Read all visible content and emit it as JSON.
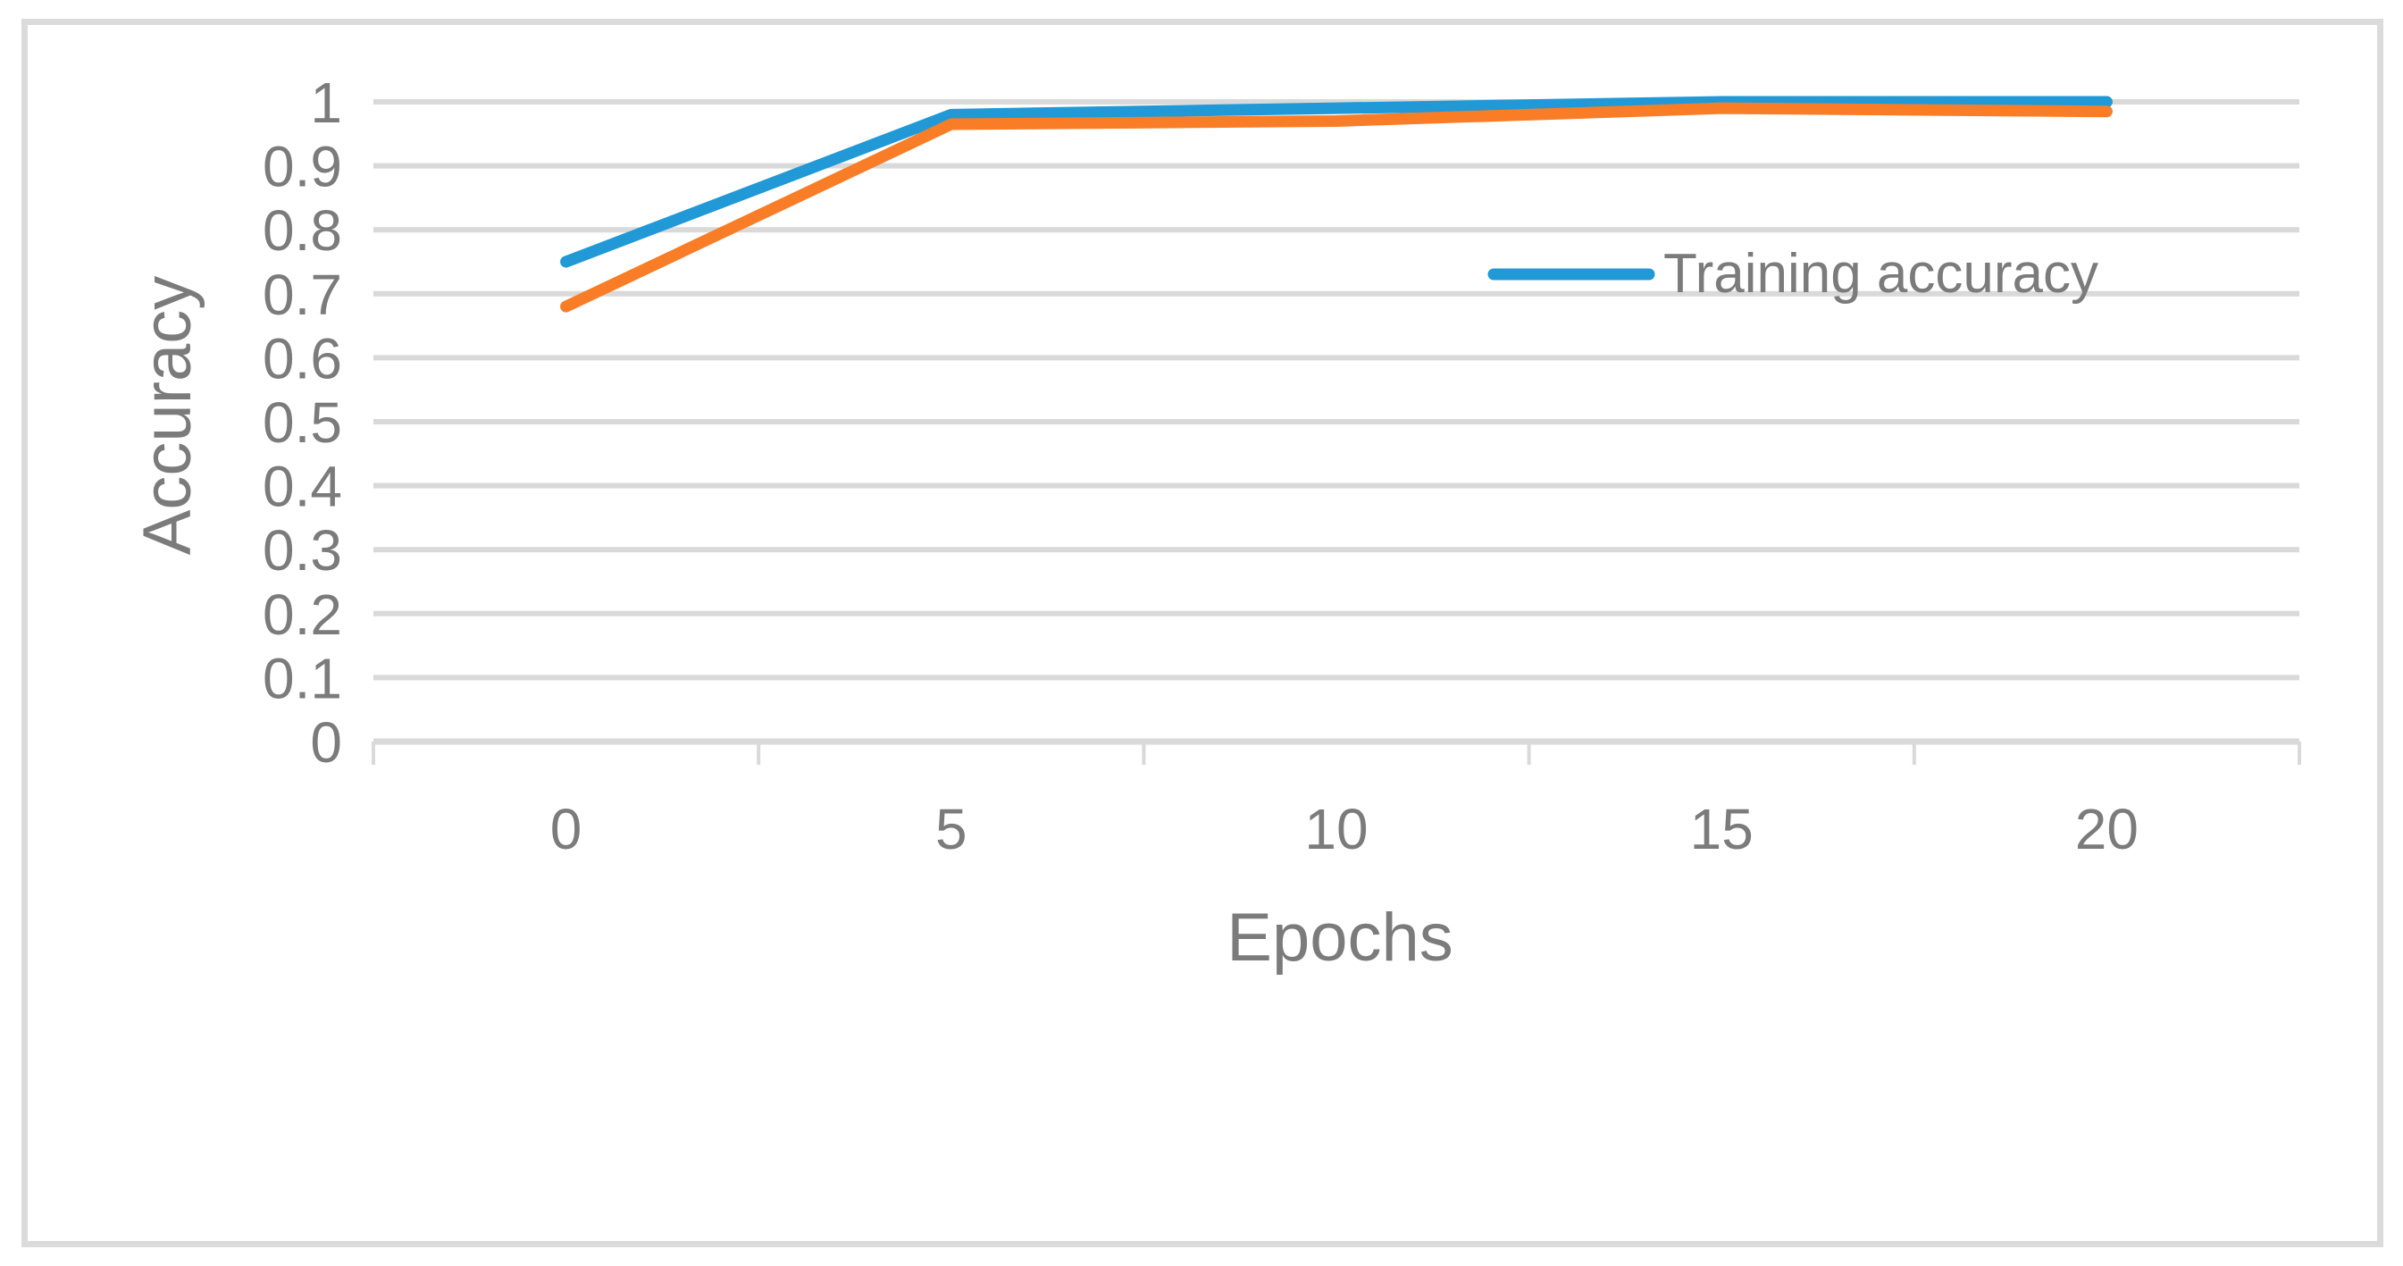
{
  "figure": {
    "type": "line-chart-figure",
    "border_color": "#dbdbdb",
    "background_color": "#ffffff"
  },
  "chart_data": {
    "type": "line",
    "title": "",
    "xlabel": "Epochs",
    "ylabel": "Accuracy",
    "x": [
      0,
      5,
      10,
      15,
      20
    ],
    "xticks": [
      "0",
      "5",
      "10",
      "15",
      "20"
    ],
    "yticks": [
      "1",
      "0.9",
      "0.8",
      "0.7",
      "0.6",
      "0.5",
      "0.4",
      "0.3",
      "0.2",
      "0.1",
      "0"
    ],
    "ylim": [
      0,
      1
    ],
    "ytick_step": 0.1,
    "grid": "horizontal-major",
    "legend_position": "middle-right-inside",
    "series": [
      {
        "name": "Training accuracy",
        "color": "#2199d6",
        "values": [
          0.75,
          0.98,
          0.99,
          1.0,
          1.0
        ],
        "legend_visible": true
      },
      {
        "name": "",
        "color": "#f97d27",
        "values": [
          0.68,
          0.965,
          0.97,
          0.99,
          0.985
        ],
        "legend_visible": false
      }
    ],
    "colors": {
      "gridline": "#d9d9d9",
      "axis_line": "#d9d9d9",
      "text": "#7b7b7b"
    }
  }
}
